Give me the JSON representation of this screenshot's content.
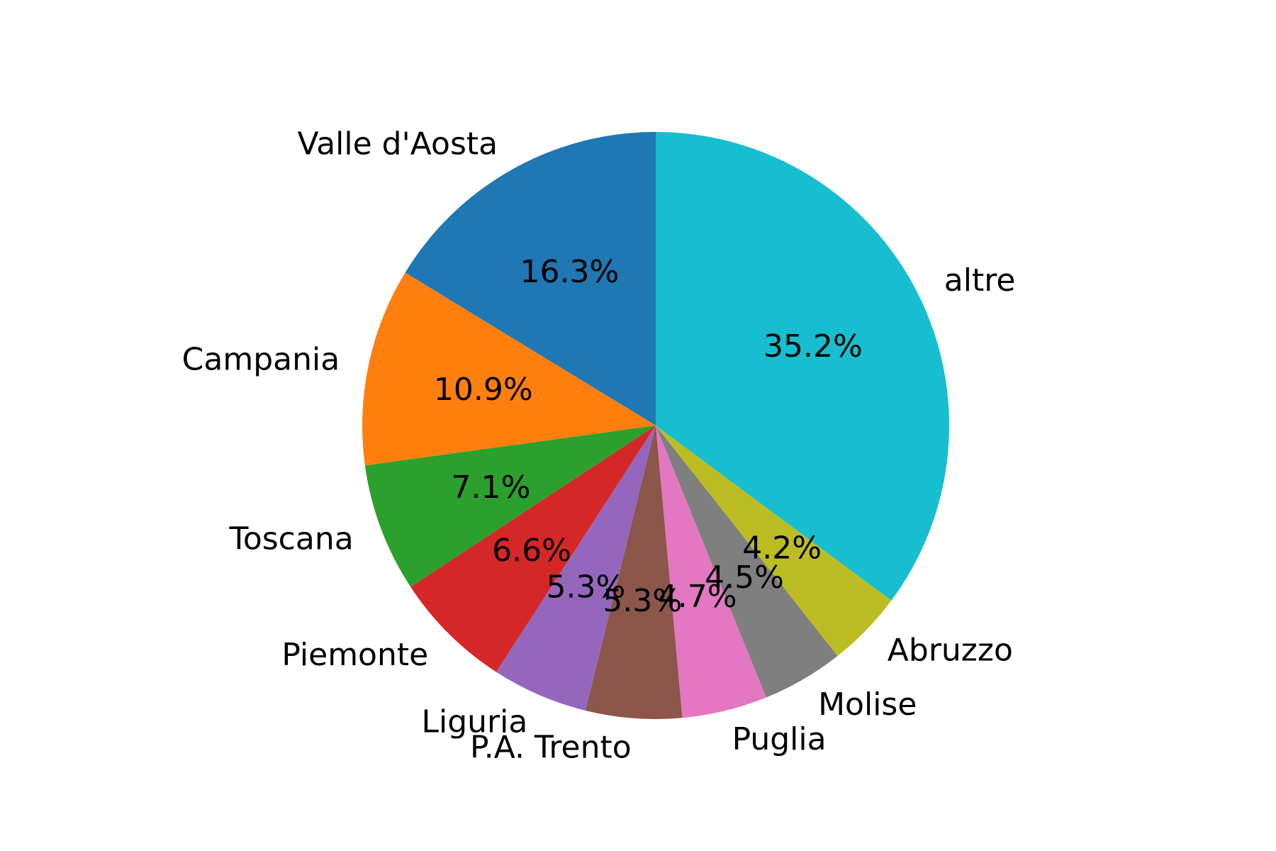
{
  "chart_data": {
    "type": "pie",
    "title": "",
    "start_angle_deg": 90,
    "direction": "counterclockwise",
    "slices": [
      {
        "label": "Valle d'Aosta",
        "value": 16.3,
        "pct_label": "16.3%",
        "color": "#1f77b4"
      },
      {
        "label": "Campania",
        "value": 10.9,
        "pct_label": "10.9%",
        "color": "#ff7f0e"
      },
      {
        "label": "Toscana",
        "value": 7.1,
        "pct_label": "7.1%",
        "color": "#2ca02c"
      },
      {
        "label": "Piemonte",
        "value": 6.6,
        "pct_label": "6.6%",
        "color": "#d62728"
      },
      {
        "label": "Liguria",
        "value": 5.3,
        "pct_label": "5.3%",
        "color": "#9467bd"
      },
      {
        "label": "P.A. Trento",
        "value": 5.3,
        "pct_label": "5.3%",
        "color": "#8c564b"
      },
      {
        "label": "Puglia",
        "value": 4.7,
        "pct_label": "4.7%",
        "color": "#e377c2"
      },
      {
        "label": "Molise",
        "value": 4.5,
        "pct_label": "4.5%",
        "color": "#7f7f7f"
      },
      {
        "label": "Abruzzo",
        "value": 4.2,
        "pct_label": "4.2%",
        "color": "#bcbd22"
      },
      {
        "label": "altre",
        "value": 35.2,
        "pct_label": "35.2%",
        "color": "#17becf"
      }
    ]
  }
}
